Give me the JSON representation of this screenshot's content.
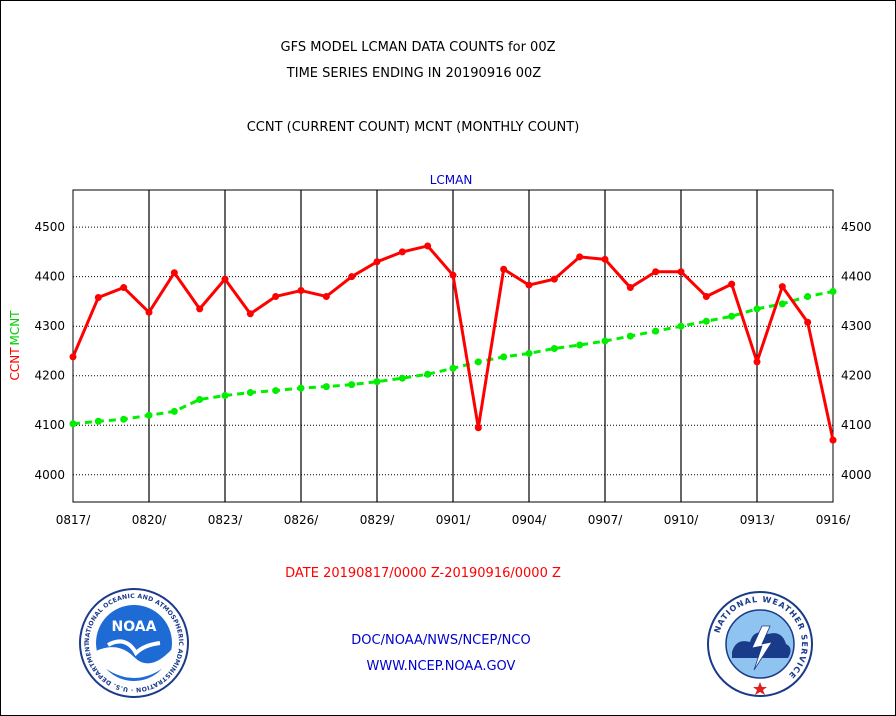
{
  "header": {
    "line1": "GFS MODEL LCMAN DATA COUNTS for 00Z",
    "line2": "TIME SERIES ENDING IN 20190916 00Z",
    "line3": "CCNT (CURRENT COUNT) MCNT (MONTHLY COUNT)"
  },
  "footer": {
    "date_range": "DATE 20190817/0000 Z-20190916/0000 Z",
    "org": "DOC/NOAA/NWS/NCEP/NCO",
    "url": "WWW.NCEP.NOAA.GOV"
  },
  "logos": {
    "noaa": "NOAA",
    "noaa_ring": "NATIONAL OCEANIC AND ATMOSPHERIC ADMINISTRATION · U.S. DEPARTMENT OF COMMERCE",
    "nws_ring": "NATIONAL WEATHER SERVICE"
  },
  "colors": {
    "ccnt": "#ff0000",
    "mcnt": "#00ee00",
    "title": "#0000cc",
    "text": "#000000"
  },
  "chart_data": {
    "type": "line",
    "title": "LCMAN",
    "ylabel_left": [
      "CCNT",
      "MCNT"
    ],
    "ylim": [
      3945,
      4575
    ],
    "yticks": [
      4000,
      4100,
      4200,
      4300,
      4400,
      4500
    ],
    "ytick_labels": [
      "4000",
      "4100",
      "4200",
      "4300",
      "4400",
      "4500"
    ],
    "xlim": [
      0,
      30
    ],
    "xticks": [
      0,
      3,
      6,
      9,
      12,
      15,
      18,
      21,
      24,
      27,
      30
    ],
    "xtick_labels": [
      "0817/",
      "0820/",
      "0823/",
      "0826/",
      "0829/",
      "0901/",
      "0904/",
      "0907/",
      "0910/",
      "0913/",
      "0916/"
    ],
    "grid": true,
    "series": [
      {
        "name": "CCNT",
        "values": [
          4238,
          4358,
          4378,
          4328,
          4408,
          4335,
          4395,
          4325,
          4360,
          4372,
          4360,
          4400,
          4430,
          4450,
          4462,
          4403,
          4095,
          4415,
          4383,
          4395,
          4440,
          4435,
          4378,
          4410,
          4410,
          4360,
          4385,
          4228,
          4380,
          4308,
          4070
        ]
      },
      {
        "name": "MCNT",
        "values": [
          4103,
          4108,
          4112,
          4120,
          4128,
          4152,
          4160,
          4166,
          4170,
          4175,
          4178,
          4182,
          4188,
          4195,
          4203,
          4215,
          4228,
          4238,
          4245,
          4255,
          4262,
          4270,
          4280,
          4290,
          4300,
          4310,
          4320,
          4335,
          4345,
          4360,
          4370
        ]
      }
    ]
  }
}
